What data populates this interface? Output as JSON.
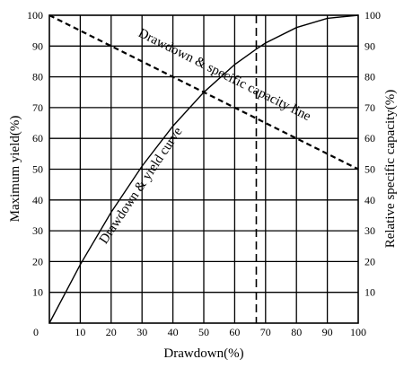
{
  "chart_data": {
    "type": "line",
    "xlabel": "Drawdown(%)",
    "ylabel_left": "Maximum yield(%)",
    "ylabel_right": "Relative specific capacity(%)",
    "xlim": [
      0,
      100
    ],
    "ylim": [
      0,
      100
    ],
    "x_ticks": [
      "0",
      "10",
      "20",
      "30",
      "40",
      "50",
      "60",
      "70",
      "80",
      "90",
      "100"
    ],
    "y_ticks": [
      "10",
      "20",
      "30",
      "40",
      "50",
      "60",
      "70",
      "80",
      "90",
      "100"
    ],
    "grid": true,
    "series": [
      {
        "name": "Drawdown & yield curve",
        "style": "solid",
        "x": [
          0,
          10,
          20,
          30,
          40,
          50,
          60,
          67,
          70,
          80,
          90,
          100
        ],
        "y": [
          0,
          19,
          36,
          51,
          64,
          75,
          84,
          89,
          91,
          96,
          99,
          100
        ]
      },
      {
        "name": "Drawdown & specific capacity line",
        "style": "dashed",
        "x": [
          0,
          100
        ],
        "y": [
          100,
          50
        ]
      }
    ],
    "vertical_line": {
      "x": 67,
      "style": "dashed"
    }
  }
}
